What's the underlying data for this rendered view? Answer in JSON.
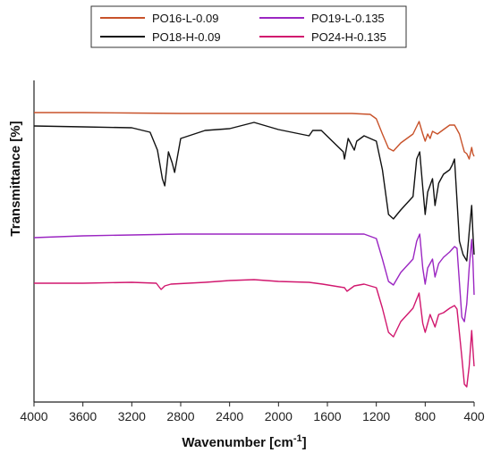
{
  "chart_data": {
    "type": "line",
    "xlabel": "Wavenumber [cm",
    "xlabel_sup": "-1",
    "xlabel_tail": "]",
    "ylabel": "Transmittance [%]",
    "xlim": [
      4000,
      400
    ],
    "x_reversed": true,
    "x_ticks": [
      4000,
      3600,
      3200,
      2800,
      2400,
      2000,
      1600,
      1200,
      800,
      400
    ],
    "x_tick_labels": [
      "4000",
      "3600",
      "3200",
      "2800",
      "2400",
      "2000",
      "1600",
      "1200",
      "800",
      "400"
    ],
    "y_ticks_shown": false,
    "grid": false,
    "legend_position": "top-center",
    "series": [
      {
        "name": "PO16-L-0.09",
        "color": "#c8522a",
        "points": [
          [
            4000,
            126
          ],
          [
            3600,
            126
          ],
          [
            3200,
            126.5
          ],
          [
            2800,
            127
          ],
          [
            2400,
            127
          ],
          [
            2000,
            127
          ],
          [
            1600,
            127
          ],
          [
            1400,
            127
          ],
          [
            1250,
            128
          ],
          [
            1200,
            133
          ],
          [
            1150,
            150
          ],
          [
            1100,
            166
          ],
          [
            1060,
            169
          ],
          [
            1000,
            160
          ],
          [
            900,
            150
          ],
          [
            850,
            136
          ],
          [
            820,
            150
          ],
          [
            800,
            158
          ],
          [
            780,
            150
          ],
          [
            760,
            155
          ],
          [
            740,
            147
          ],
          [
            700,
            150
          ],
          [
            650,
            145
          ],
          [
            600,
            140
          ],
          [
            560,
            140
          ],
          [
            520,
            150
          ],
          [
            500,
            160
          ],
          [
            480,
            170
          ],
          [
            460,
            172
          ],
          [
            440,
            178
          ],
          [
            420,
            165
          ],
          [
            410,
            172
          ],
          [
            400,
            175
          ]
        ]
      },
      {
        "name": "PO18-H-0.09",
        "color": "#111111",
        "points": [
          [
            4000,
            141
          ],
          [
            3600,
            142
          ],
          [
            3200,
            143
          ],
          [
            3050,
            148
          ],
          [
            2990,
            168
          ],
          [
            2950,
            200
          ],
          [
            2930,
            208
          ],
          [
            2900,
            170
          ],
          [
            2870,
            182
          ],
          [
            2850,
            193
          ],
          [
            2800,
            155
          ],
          [
            2600,
            146
          ],
          [
            2400,
            144
          ],
          [
            2200,
            137
          ],
          [
            2000,
            145
          ],
          [
            1750,
            152
          ],
          [
            1720,
            146
          ],
          [
            1650,
            146
          ],
          [
            1470,
            170
          ],
          [
            1460,
            178
          ],
          [
            1430,
            155
          ],
          [
            1380,
            168
          ],
          [
            1360,
            158
          ],
          [
            1300,
            152
          ],
          [
            1200,
            158
          ],
          [
            1150,
            190
          ],
          [
            1100,
            240
          ],
          [
            1060,
            245
          ],
          [
            1000,
            235
          ],
          [
            900,
            220
          ],
          [
            870,
            178
          ],
          [
            845,
            170
          ],
          [
            820,
            210
          ],
          [
            800,
            240
          ],
          [
            780,
            215
          ],
          [
            740,
            200
          ],
          [
            720,
            230
          ],
          [
            690,
            205
          ],
          [
            650,
            195
          ],
          [
            600,
            190
          ],
          [
            580,
            185
          ],
          [
            560,
            178
          ],
          [
            520,
            270
          ],
          [
            490,
            285
          ],
          [
            460,
            292
          ],
          [
            440,
            260
          ],
          [
            420,
            230
          ],
          [
            410,
            260
          ],
          [
            400,
            285
          ]
        ]
      },
      {
        "name": "PO19-L-0.135",
        "color": "#9b26c2",
        "points": [
          [
            4000,
            266
          ],
          [
            3600,
            264
          ],
          [
            3200,
            263
          ],
          [
            2800,
            262
          ],
          [
            2400,
            262
          ],
          [
            2000,
            262
          ],
          [
            1600,
            262
          ],
          [
            1300,
            262
          ],
          [
            1200,
            267
          ],
          [
            1150,
            290
          ],
          [
            1100,
            315
          ],
          [
            1060,
            319
          ],
          [
            1000,
            305
          ],
          [
            900,
            290
          ],
          [
            870,
            270
          ],
          [
            845,
            262
          ],
          [
            820,
            300
          ],
          [
            800,
            318
          ],
          [
            780,
            300
          ],
          [
            740,
            290
          ],
          [
            720,
            310
          ],
          [
            690,
            295
          ],
          [
            650,
            288
          ],
          [
            600,
            282
          ],
          [
            560,
            276
          ],
          [
            540,
            278
          ],
          [
            500,
            355
          ],
          [
            480,
            360
          ],
          [
            460,
            340
          ],
          [
            440,
            300
          ],
          [
            420,
            268
          ],
          [
            410,
            290
          ],
          [
            400,
            330
          ]
        ]
      },
      {
        "name": "PO24-H-0.135",
        "color": "#d1176e",
        "points": [
          [
            4000,
            317
          ],
          [
            3600,
            317
          ],
          [
            3200,
            316
          ],
          [
            3000,
            317
          ],
          [
            2960,
            324
          ],
          [
            2930,
            320
          ],
          [
            2880,
            318
          ],
          [
            2600,
            316
          ],
          [
            2400,
            314
          ],
          [
            2200,
            313
          ],
          [
            2000,
            315
          ],
          [
            1750,
            316
          ],
          [
            1640,
            318
          ],
          [
            1460,
            322
          ],
          [
            1440,
            326
          ],
          [
            1380,
            320
          ],
          [
            1300,
            318
          ],
          [
            1200,
            322
          ],
          [
            1150,
            345
          ],
          [
            1100,
            372
          ],
          [
            1060,
            377
          ],
          [
            1000,
            360
          ],
          [
            900,
            345
          ],
          [
            850,
            328
          ],
          [
            820,
            362
          ],
          [
            800,
            372
          ],
          [
            780,
            362
          ],
          [
            760,
            352
          ],
          [
            720,
            366
          ],
          [
            690,
            352
          ],
          [
            650,
            350
          ],
          [
            600,
            345
          ],
          [
            560,
            342
          ],
          [
            540,
            346
          ],
          [
            500,
            400
          ],
          [
            480,
            430
          ],
          [
            460,
            433
          ],
          [
            440,
            410
          ],
          [
            420,
            370
          ],
          [
            410,
            390
          ],
          [
            400,
            410
          ]
        ]
      }
    ]
  }
}
